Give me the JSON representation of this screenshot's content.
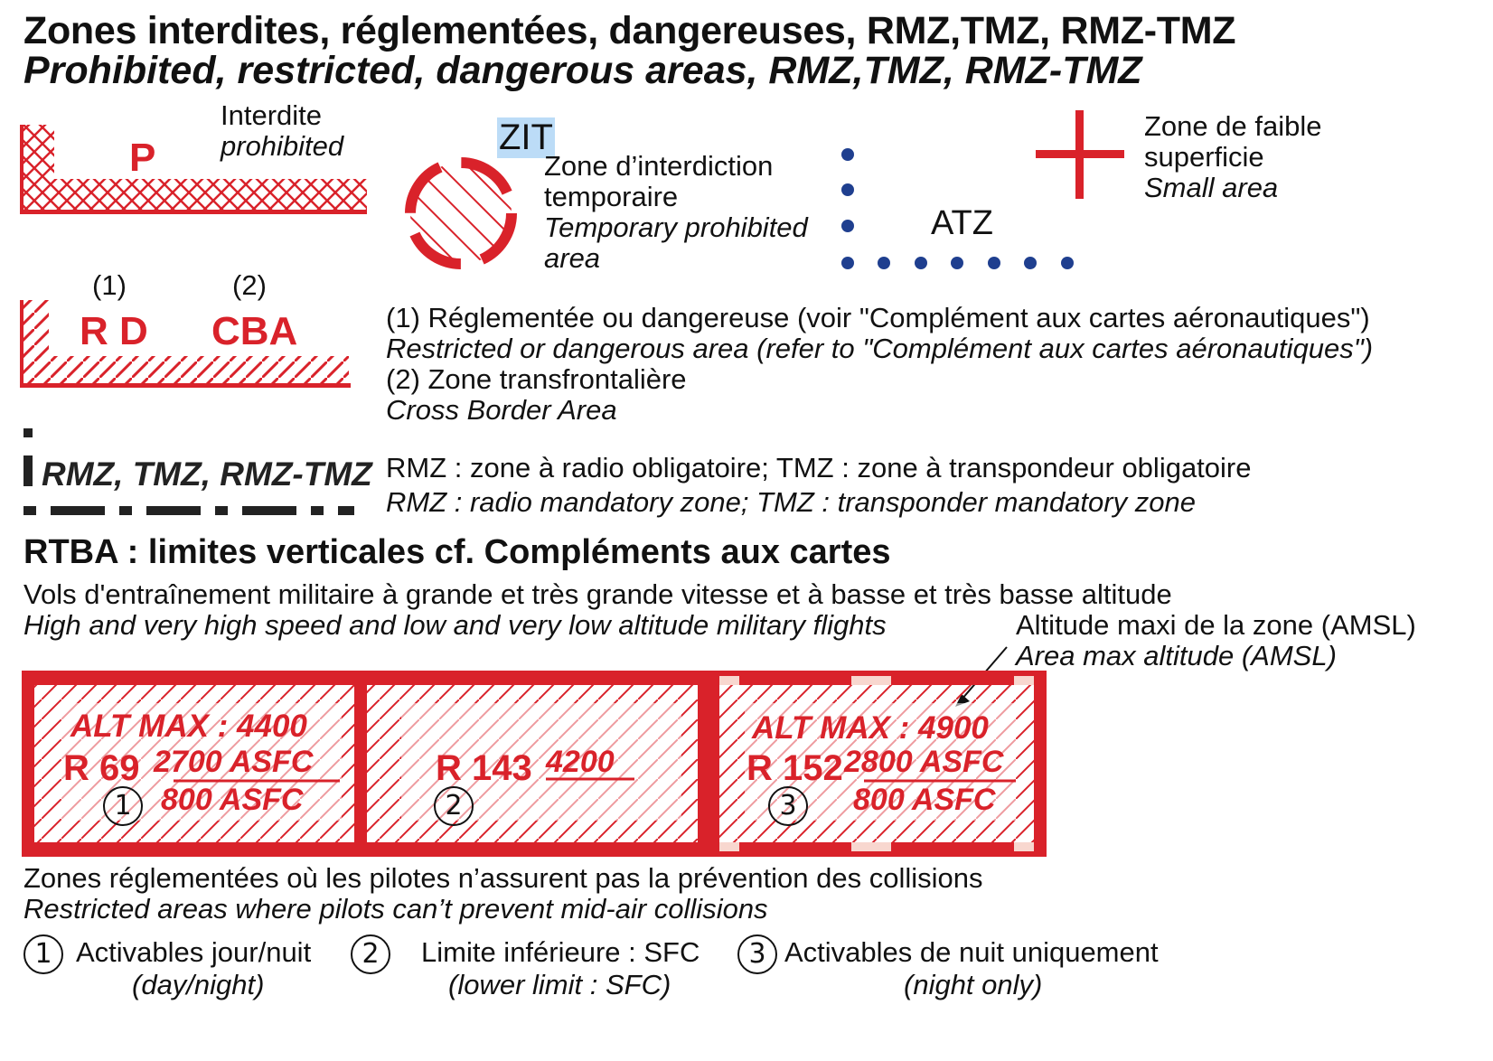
{
  "title_fr": "Zones interdites, réglementées, dangereuses, RMZ,TMZ, RMZ-TMZ",
  "title_en": "Prohibited, restricted, dangerous areas, RMZ,TMZ, RMZ-TMZ",
  "prohibited": {
    "letter": "P",
    "label_fr": "Interdite",
    "label_en": "prohibited"
  },
  "zit": {
    "tag": "ZIT",
    "line1": "Zone d’interdiction",
    "line2": "temporaire",
    "line3": "Temporary prohibited",
    "line4": "area"
  },
  "atz": {
    "label": "ATZ"
  },
  "small_area": {
    "line1": "Zone de faible",
    "line2": "superficie",
    "line3": "Small area"
  },
  "restricted": {
    "num1": "(1)",
    "num2": "(2)",
    "letters": "R D",
    "cba": "CBA",
    "note1_fr": "(1) Réglementée ou dangereuse (voir \"Complément aux cartes aéronautiques\")",
    "note1_en": "Restricted or dangerous area (refer to \"Complément aux cartes aéronautiques\")",
    "note2_fr": "(2) Zone transfrontalière",
    "note2_en": "Cross Border Area"
  },
  "rmz": {
    "label": "RMZ, TMZ, RMZ-TMZ",
    "desc_fr": "RMZ : zone à radio obligatoire; TMZ : zone à transpondeur obligatoire",
    "desc_en": "RMZ : radio mandatory zone; TMZ : transponder mandatory zone"
  },
  "rtba": {
    "heading": "RTBA : limites verticales cf. Compléments aux cartes",
    "desc_fr": "Vols d'entraînement militaire à grande et très grande vitesse et à basse et très basse altitude",
    "desc_en": "High and very high speed and low and very low altitude military flights",
    "alt_note_fr": "Altitude maxi de la zone (AMSL)",
    "alt_note_en": "Area max altitude (AMSL)",
    "boxes": [
      {
        "alt": "ALT MAX : 4400",
        "name": "R 69",
        "upper": "2700 ASFC",
        "lower": "800 ASFC",
        "mark": "①"
      },
      {
        "alt": "",
        "name": "R 143",
        "upper": "4200",
        "lower": "",
        "mark": "②"
      },
      {
        "alt": "ALT MAX : 4900",
        "name": "R 152",
        "upper": "2800 ASFC",
        "lower": "800 ASFC",
        "mark": "③"
      }
    ],
    "collision_fr": "Zones réglementées où les pilotes n’assurent pas la prévention des collisions",
    "collision_en": "Restricted areas where pilots can’t prevent mid-air collisions"
  },
  "legend": [
    {
      "mark": "①",
      "fr": "Activables jour/nuit",
      "en": "(day/night)"
    },
    {
      "mark": "②",
      "fr": "Limite inférieure : SFC",
      "en": "(lower limit : SFC)"
    },
    {
      "mark": "③",
      "fr": "Activables de nuit uniquement",
      "en": "(night only)"
    }
  ],
  "colors": {
    "red": "#d9222a",
    "blue": "#1f3f8f",
    "highlight": "#bcdcf7"
  }
}
